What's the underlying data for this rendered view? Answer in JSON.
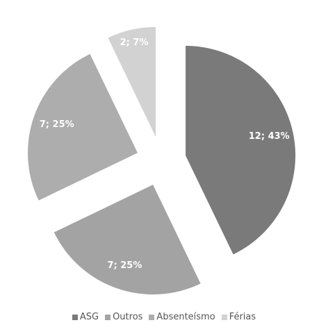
{
  "chart_data": {
    "type": "pie",
    "title": "",
    "categories": [
      "ASG",
      "Outros",
      "Absenteísmo",
      "Férias"
    ],
    "values": [
      12,
      7,
      7,
      2
    ],
    "percentages": [
      43,
      25,
      25,
      7
    ],
    "data_labels": [
      "12; 43%",
      "7; 25%",
      "7; 25%",
      "2; 7%"
    ],
    "colors": [
      "#7a7a7a",
      "#a3a3a3",
      "#adadad",
      "#d2d2d2"
    ],
    "exploded": true,
    "legend": {
      "position": "bottom",
      "entries": [
        "ASG",
        "Outros",
        "Absenteísmo",
        "Férias"
      ]
    }
  }
}
